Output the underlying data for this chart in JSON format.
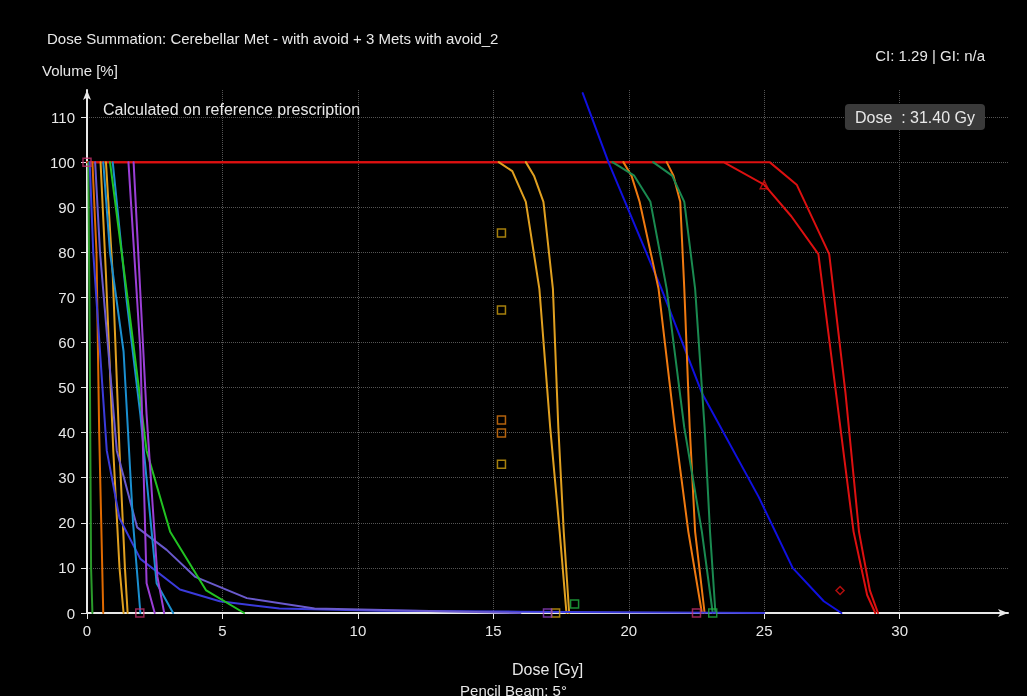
{
  "chart_data": {
    "type": "line",
    "title": "Dose Summation: Cerebellar Met - with avoid + 3 Mets with avoid_2",
    "xlabel": "Dose [Gy]",
    "ylabel": "Volume [%]",
    "annotations": [
      "Calculated on reference prescription",
      "CI: 1.29 | GI: n/a",
      "Dose  : 31.40 Gy",
      "Pencil Beam: 5°"
    ],
    "xlim": [
      0,
      34
    ],
    "ylim": [
      0,
      116
    ],
    "xticks": [
      0,
      5,
      10,
      15,
      20,
      25,
      30
    ],
    "yticks": [
      0,
      10,
      20,
      30,
      40,
      50,
      60,
      70,
      80,
      90,
      100,
      110
    ],
    "grid": true,
    "marker": "none",
    "line_style": "solid",
    "series": [
      {
        "color": "#dd1010",
        "x": [
          0,
          23.5,
          25.2,
          26.2,
          27.4,
          28.0,
          28.5,
          28.9,
          29.2
        ],
        "values": [
          100,
          100,
          100,
          95,
          79.6,
          48.8,
          18,
          5,
          0
        ]
      },
      {
        "color": "#dd1010",
        "x": [
          0,
          23.5,
          25.0,
          26.0,
          27.0,
          27.65,
          28.3,
          28.8,
          29.1
        ],
        "values": [
          100,
          100,
          95,
          88,
          79.6,
          48.8,
          18,
          4,
          0
        ]
      },
      {
        "color": "#1010e0",
        "x": [
          18.3,
          19.25,
          21.2,
          22.7,
          24.8,
          26.05,
          27.2,
          27.85
        ],
        "values": [
          115.3,
          100,
          72,
          48.8,
          25.7,
          10,
          2.6,
          0
        ]
      },
      {
        "color": "#e0a020",
        "x": [
          15.2,
          15.7,
          16.2,
          16.7,
          17.1,
          17.45,
          17.7
        ],
        "values": [
          100,
          98,
          91.2,
          71.9,
          41.1,
          18,
          0
        ]
      },
      {
        "color": "#e0a020",
        "x": [
          16.2,
          16.5,
          16.85,
          17.2,
          17.4,
          17.6,
          17.8
        ],
        "values": [
          100,
          97,
          91.2,
          71.9,
          41.1,
          18,
          0
        ]
      },
      {
        "color": "#f07a10",
        "x": [
          19.8,
          20.1,
          20.4,
          21.1,
          21.7,
          22.2,
          22.7
        ],
        "values": [
          100,
          97,
          91.2,
          71.9,
          41.1,
          18,
          0
        ]
      },
      {
        "color": "#f07a10",
        "x": [
          21.4,
          21.65,
          21.9,
          22.05,
          22.25,
          22.45,
          22.8
        ],
        "values": [
          100,
          97,
          91.2,
          71.9,
          41.1,
          18,
          0
        ]
      },
      {
        "color": "#1a8a50",
        "x": [
          19.4,
          20.2,
          20.8,
          21.4,
          22.05,
          22.7,
          23.1
        ],
        "values": [
          100,
          97,
          91.2,
          71.9,
          41.1,
          18,
          0
        ]
      },
      {
        "color": "#1a8a50",
        "x": [
          20.9,
          21.6,
          22.05,
          22.45,
          22.8,
          23.0,
          23.2
        ],
        "values": [
          100,
          97,
          91.2,
          71.9,
          41.1,
          18,
          0
        ]
      },
      {
        "color": "#2a9a2a",
        "x": [
          0.05,
          0.1,
          0.15,
          0.2
        ],
        "values": [
          100,
          60,
          10,
          0
        ]
      },
      {
        "color": "#e06a00",
        "x": [
          0.2,
          0.35,
          0.45,
          0.6
        ],
        "values": [
          100,
          80,
          40,
          0
        ]
      },
      {
        "color": "#e0a020",
        "x": [
          0.5,
          0.7,
          0.97,
          1.2,
          1.35
        ],
        "values": [
          100,
          75,
          36,
          10,
          0
        ]
      },
      {
        "color": "#e0a020",
        "x": [
          0.7,
          0.95,
          1.2,
          1.4,
          1.5
        ],
        "values": [
          100,
          75,
          36,
          10,
          0
        ]
      },
      {
        "color": "#3b3bdb",
        "x": [
          0.1,
          0.23,
          0.73,
          1.2,
          1.97,
          3.43,
          4.9,
          7.1,
          10.8,
          16,
          25
        ],
        "values": [
          100,
          80,
          36,
          21,
          12,
          5.2,
          2.6,
          1,
          0.5,
          0.3,
          0
        ]
      },
      {
        "color": "#6a5acd",
        "x": [
          0.3,
          0.48,
          1.1,
          1.85,
          2.94,
          4.0,
          5.9,
          8.4,
          16
        ],
        "values": [
          100,
          80,
          36,
          19,
          14,
          8,
          3.3,
          1,
          0
        ]
      },
      {
        "color": "#1a8fd0",
        "x": [
          0.6,
          0.85,
          1.35,
          1.7,
          1.97
        ],
        "values": [
          100,
          80,
          58,
          20,
          0
        ]
      },
      {
        "color": "#1a8fd0",
        "x": [
          0.95,
          1.47,
          1.97,
          2.57,
          3.18
        ],
        "values": [
          100,
          69,
          44,
          6.6,
          0
        ]
      },
      {
        "color": "#22c322",
        "x": [
          0.85,
          1.6,
          2.2,
          3.07,
          4.4,
          5.8
        ],
        "values": [
          100,
          65,
          36,
          18,
          5,
          0
        ]
      },
      {
        "color": "#9b3fd6",
        "x": [
          1.53,
          1.97,
          2.2,
          2.5
        ],
        "values": [
          100,
          58,
          6.6,
          0
        ]
      },
      {
        "color": "#9b3fd6",
        "x": [
          1.72,
          2.2,
          2.6,
          2.85
        ],
        "values": [
          100,
          44,
          8,
          0
        ]
      },
      {
        "type": "scatter",
        "marker": "square",
        "color": "#d0a010",
        "x": [
          15.3,
          15.3,
          15.3,
          17.3
        ],
        "values": [
          84.3,
          67.2,
          33,
          0
        ]
      },
      {
        "type": "scatter",
        "marker": "square",
        "color": "#e07a10",
        "x": [
          15.3,
          15.3
        ],
        "values": [
          42.8,
          39.9
        ]
      },
      {
        "type": "scatter",
        "marker": "square",
        "color": "#20b040",
        "x": [
          18.0,
          23.1
        ],
        "values": [
          2,
          0
        ]
      },
      {
        "type": "scatter",
        "marker": "square",
        "color": "#9040c0",
        "x": [
          17.0
        ],
        "values": [
          0
        ]
      },
      {
        "type": "scatter",
        "marker": "square",
        "color": "#c0306a",
        "x": [
          0,
          1.95,
          22.5
        ],
        "values": [
          100,
          0,
          0
        ]
      },
      {
        "type": "scatter",
        "marker": "triangle",
        "color": "#dd1010",
        "x": [
          25
        ],
        "values": [
          95
        ]
      },
      {
        "type": "scatter",
        "marker": "diamond",
        "color": "#dd1010",
        "x": [
          27.8
        ],
        "values": [
          5
        ]
      }
    ]
  }
}
